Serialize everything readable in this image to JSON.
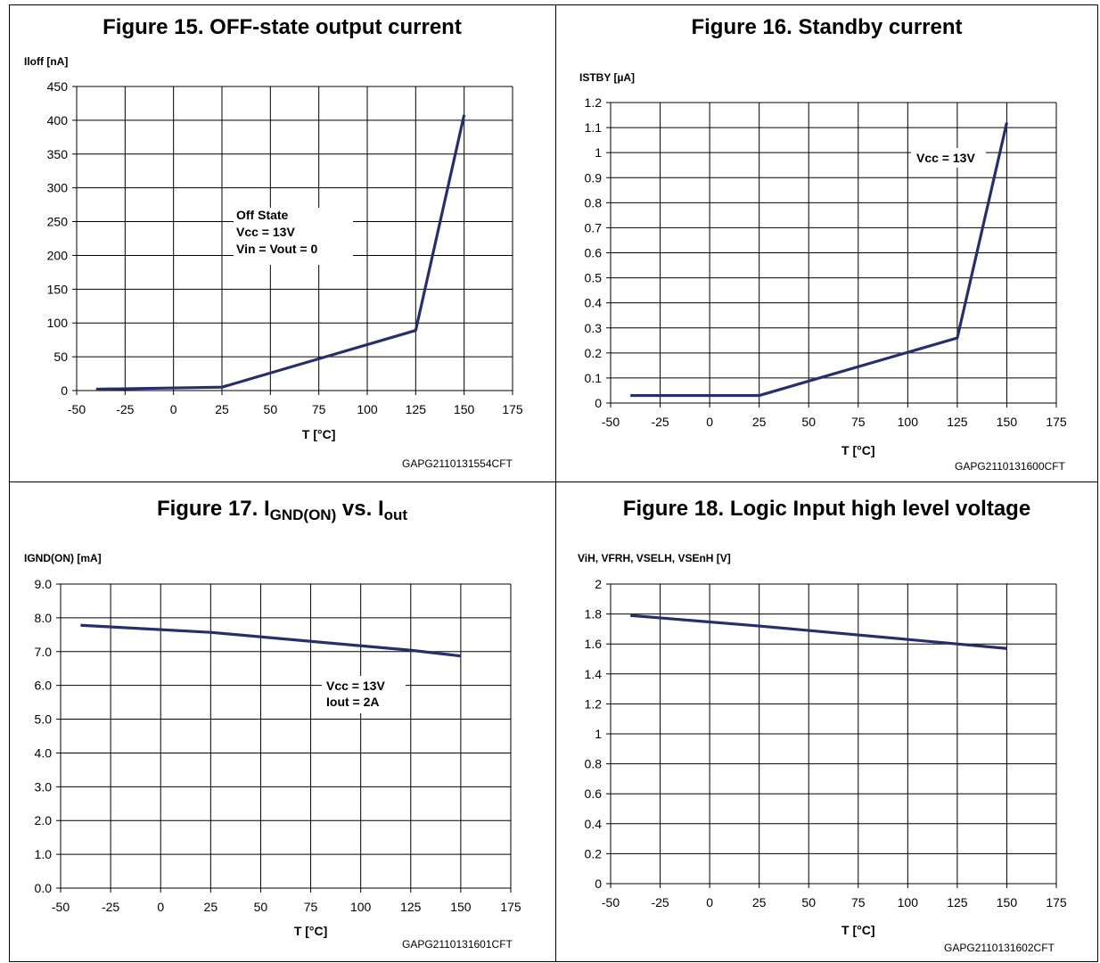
{
  "charts": [
    {
      "title": "Figure 15. OFF-state output current",
      "code": "GAPG2110131554CFT",
      "chart_data": {
        "type": "line",
        "ylabel": "Iloff [nA]",
        "xlabel": "T [°C]",
        "xlim": [
          -50,
          175
        ],
        "ylim": [
          0,
          450
        ],
        "xticks": [
          "-50",
          "-25",
          "0",
          "25",
          "50",
          "75",
          "100",
          "125",
          "150",
          "175"
        ],
        "yticks": [
          "0",
          "50",
          "100",
          "150",
          "200",
          "250",
          "300",
          "350",
          "400",
          "450"
        ],
        "grid": true,
        "annotation": [
          "Off State",
          "Vcc = 13V",
          "Vin = Vout = 0"
        ],
        "series": [
          {
            "x": [
              -40,
              25,
              125,
              150
            ],
            "y": [
              2,
              5,
              89,
              408
            ]
          }
        ]
      }
    },
    {
      "title": "Figure 16. Standby current",
      "code": "GAPG2110131600CFT",
      "chart_data": {
        "type": "line",
        "ylabel": "ISTBY [µA]",
        "xlabel": "T [°C]",
        "xlim": [
          -50,
          175
        ],
        "ylim": [
          0,
          1.2
        ],
        "xticks": [
          "-50",
          "-25",
          "0",
          "25",
          "50",
          "75",
          "100",
          "125",
          "150",
          "175"
        ],
        "yticks": [
          "0",
          "0.1",
          "0.2",
          "0.3",
          "0.4",
          "0.5",
          "0.6",
          "0.7",
          "0.8",
          "0.9",
          "1",
          "1.1",
          "1.2"
        ],
        "grid": true,
        "annotation": [
          "Vcc = 13V"
        ],
        "series": [
          {
            "x": [
              -40,
              25,
              125,
              150
            ],
            "y": [
              0.03,
              0.03,
              0.26,
              1.12
            ]
          }
        ]
      }
    },
    {
      "title_main": "Figure 17. I",
      "title_sub1": "GND(ON)",
      "title_mid": " vs. I",
      "title_sub2": "out",
      "code": "GAPG2110131601CFT",
      "chart_data": {
        "type": "line",
        "ylabel": "IGND(ON) [mA]",
        "xlabel": "T [°C]",
        "xlim": [
          -50,
          175
        ],
        "ylim": [
          0,
          9
        ],
        "xticks": [
          "-50",
          "-25",
          "0",
          "25",
          "50",
          "75",
          "100",
          "125",
          "150",
          "175"
        ],
        "yticks": [
          "0.0",
          "1.0",
          "2.0",
          "3.0",
          "4.0",
          "5.0",
          "6.0",
          "7.0",
          "8.0",
          "9.0"
        ],
        "grid": true,
        "annotation": [
          "Vcc = 13V",
          "Iout = 2A"
        ],
        "series": [
          {
            "x": [
              -40,
              25,
              125,
              150
            ],
            "y": [
              7.78,
              7.57,
              7.04,
              6.87
            ]
          }
        ]
      }
    },
    {
      "title": "Figure 18. Logic Input high level voltage",
      "code": "GAPG2110131602CFT",
      "chart_data": {
        "type": "line",
        "ylabel": "ViH, VFRH, VSELH, VSEnH [V]",
        "xlabel": "T [°C]",
        "xlim": [
          -50,
          175
        ],
        "ylim": [
          0,
          2
        ],
        "xticks": [
          "-50",
          "-25",
          "0",
          "25",
          "50",
          "75",
          "100",
          "125",
          "150",
          "175"
        ],
        "yticks": [
          "0",
          "0.2",
          "0.4",
          "0.6",
          "0.8",
          "1",
          "1.2",
          "1.4",
          "1.6",
          "1.8",
          "2"
        ],
        "grid": true,
        "annotation": [],
        "series": [
          {
            "x": [
              -40,
              25,
              125,
              150
            ],
            "y": [
              1.79,
              1.72,
              1.6,
              1.57
            ]
          }
        ]
      }
    }
  ],
  "colors": {
    "line": "#262f6a",
    "grid": "#000000"
  }
}
